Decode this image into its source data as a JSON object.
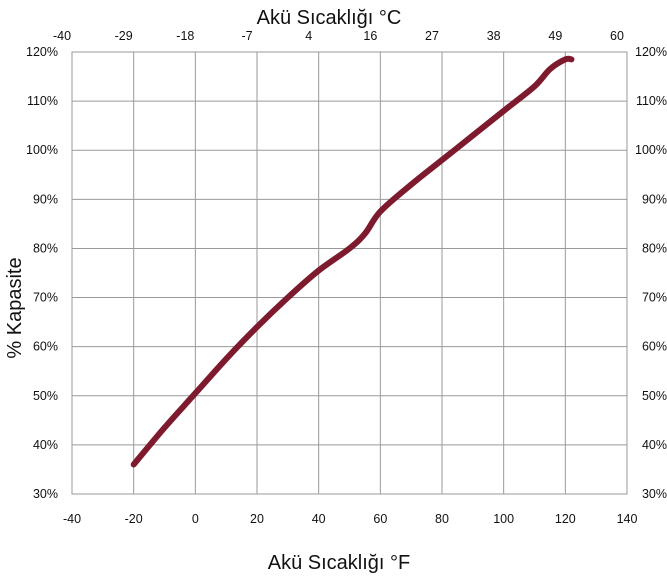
{
  "chart_data": {
    "type": "line",
    "title": "",
    "xlabel": "Akü Sıcaklığı °F",
    "x2label": "Akü Sıcaklığı °C",
    "ylabel": "% Kapasite",
    "xlim": [
      -40,
      140
    ],
    "x_ticks": [
      "-40",
      "-20",
      "0",
      "20",
      "40",
      "60",
      "80",
      "100",
      "120",
      "140"
    ],
    "x2_ticks": [
      "-40",
      "-29",
      "-18",
      "-7",
      "4",
      "16",
      "27",
      "38",
      "49",
      "60"
    ],
    "ylim": [
      30,
      120
    ],
    "y_ticks": [
      "30%",
      "40%",
      "50%",
      "60%",
      "70%",
      "80%",
      "90%",
      "100%",
      "110%",
      "120%"
    ],
    "grid": true,
    "color": "#7e1a2e",
    "series": [
      {
        "x": [
          -20,
          -10,
          0,
          10,
          20,
          30,
          40,
          50,
          55,
          60,
          70,
          80,
          90,
          100,
          110,
          115,
          120,
          122
        ],
        "y": [
          36,
          43.5,
          50.5,
          57.5,
          64,
          70,
          75.5,
          80,
          83,
          87.5,
          93,
          98,
          103,
          108,
          113,
          116.5,
          118.5,
          118.5
        ]
      }
    ]
  }
}
